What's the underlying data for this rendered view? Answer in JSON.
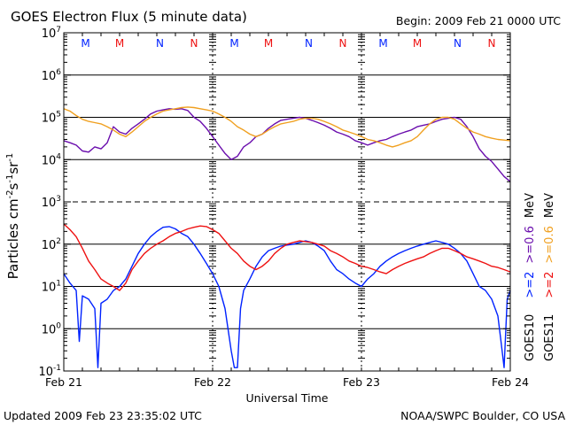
{
  "header": {
    "title": "GOES Electron Flux (5 minute data)",
    "begin": "Begin: 2009 Feb 21 0000 UTC"
  },
  "footer": {
    "updated": "Updated 2009 Feb 23 23:35:02 UTC",
    "source": "NOAA/SWPC Boulder, CO USA"
  },
  "colors": {
    "goes10_e2": "#0022ff",
    "goes10_e06": "#6a0dad",
    "goes11_e2": "#ee1111",
    "goes11_e06": "#f0a020"
  },
  "chart_data": {
    "type": "line",
    "title": "GOES Electron Flux (5 minute data)",
    "xlabel": "Universal Time",
    "ylabel": "Particles cm-2s-1sr-1",
    "yscale": "log",
    "ylim": [
      0.1,
      10000000
    ],
    "xlim": [
      0,
      72
    ],
    "x_unit": "hours since 2009 Feb 21 0000 UTC",
    "x_ticks": [
      {
        "x": 0,
        "label": "Feb 21"
      },
      {
        "x": 24,
        "label": "Feb 22"
      },
      {
        "x": 48,
        "label": "Feb 23"
      },
      {
        "x": 72,
        "label": "Feb 24"
      }
    ],
    "y_ticks": [
      {
        "exp": -1,
        "label": "10-1"
      },
      {
        "exp": 0,
        "label": "100"
      },
      {
        "exp": 1,
        "label": "101"
      },
      {
        "exp": 2,
        "label": "102"
      },
      {
        "exp": 3,
        "label": "103"
      },
      {
        "exp": 4,
        "label": "104"
      },
      {
        "exp": 5,
        "label": "105"
      },
      {
        "exp": 6,
        "label": "106"
      },
      {
        "exp": 7,
        "label": "107"
      }
    ],
    "threshold_line": 1000,
    "noon_midnight_markers": [
      {
        "x": 3.5,
        "label": "M",
        "color": "#0022ff"
      },
      {
        "x": 9.0,
        "label": "M",
        "color": "#ee1111"
      },
      {
        "x": 15.5,
        "label": "N",
        "color": "#0022ff"
      },
      {
        "x": 21.0,
        "label": "N",
        "color": "#ee1111"
      },
      {
        "x": 27.5,
        "label": "M",
        "color": "#0022ff"
      },
      {
        "x": 33.0,
        "label": "M",
        "color": "#ee1111"
      },
      {
        "x": 39.5,
        "label": "N",
        "color": "#0022ff"
      },
      {
        "x": 45.0,
        "label": "N",
        "color": "#ee1111"
      },
      {
        "x": 51.5,
        "label": "M",
        "color": "#0022ff"
      },
      {
        "x": 57.0,
        "label": "M",
        "color": "#ee1111"
      },
      {
        "x": 63.5,
        "label": "N",
        "color": "#0022ff"
      },
      {
        "x": 69.0,
        "label": "N",
        "color": "#ee1111"
      }
    ],
    "legend": [
      {
        "satellite": "GOES10",
        "parts": [
          {
            "text": ">=2",
            "series": "goes10_e2"
          },
          {
            "text": ">=0.6",
            "series": "goes10_e06"
          }
        ],
        "unit": "MeV"
      },
      {
        "satellite": "GOES11",
        "parts": [
          {
            "text": ">=2",
            "series": "goes11_e2"
          },
          {
            "text": ">=0.6",
            "series": "goes11_e06"
          }
        ],
        "unit": "MeV"
      }
    ],
    "series": [
      {
        "name": "GOES10 >=0.6 MeV",
        "key": "goes10_e06",
        "x": [
          0,
          1,
          2,
          3,
          4,
          5,
          6,
          7,
          8,
          9,
          10,
          11,
          12,
          13,
          14,
          15,
          16,
          17,
          18,
          19,
          20,
          21,
          22,
          23,
          24,
          25,
          26,
          27,
          28,
          29,
          30,
          31,
          32,
          33,
          34,
          35,
          36,
          37,
          38,
          39,
          40,
          41,
          42,
          43,
          44,
          45,
          46,
          47,
          48,
          49,
          50,
          51,
          52,
          53,
          54,
          55,
          56,
          57,
          58,
          59,
          60,
          61,
          62,
          63,
          64,
          65,
          66,
          67,
          68,
          69,
          70,
          71,
          72
        ],
        "values": [
          28000,
          25000,
          22000,
          16000,
          15000,
          20000,
          18000,
          25000,
          60000,
          45000,
          40000,
          55000,
          70000,
          90000,
          120000,
          140000,
          150000,
          160000,
          155000,
          160000,
          145000,
          100000,
          80000,
          55000,
          35000,
          22000,
          14000,
          10000,
          12000,
          20000,
          25000,
          35000,
          40000,
          55000,
          70000,
          85000,
          90000,
          95000,
          100000,
          95000,
          85000,
          75000,
          65000,
          55000,
          45000,
          40000,
          35000,
          28000,
          25000,
          22000,
          25000,
          28000,
          30000,
          35000,
          40000,
          45000,
          50000,
          60000,
          65000,
          70000,
          80000,
          90000,
          95000,
          100000,
          90000,
          60000,
          35000,
          18000,
          12000,
          9000,
          6000,
          4000,
          3000
        ]
      },
      {
        "name": "GOES11 >=0.6 MeV",
        "key": "goes11_e06",
        "x": [
          0,
          1,
          2,
          3,
          4,
          5,
          6,
          7,
          8,
          9,
          10,
          11,
          12,
          13,
          14,
          15,
          16,
          17,
          18,
          19,
          20,
          21,
          22,
          23,
          24,
          25,
          26,
          27,
          28,
          29,
          30,
          31,
          32,
          33,
          34,
          35,
          36,
          37,
          38,
          39,
          40,
          41,
          42,
          43,
          44,
          45,
          46,
          47,
          48,
          49,
          50,
          51,
          52,
          53,
          54,
          55,
          56,
          57,
          58,
          59,
          60,
          61,
          62,
          63,
          64,
          65,
          66,
          67,
          68,
          69,
          70,
          71,
          72
        ],
        "values": [
          160000,
          140000,
          110000,
          90000,
          80000,
          75000,
          70000,
          60000,
          50000,
          40000,
          35000,
          45000,
          60000,
          80000,
          100000,
          120000,
          140000,
          150000,
          160000,
          170000,
          175000,
          170000,
          160000,
          150000,
          140000,
          120000,
          100000,
          80000,
          60000,
          50000,
          40000,
          35000,
          40000,
          50000,
          60000,
          70000,
          75000,
          80000,
          90000,
          95000,
          95000,
          90000,
          80000,
          70000,
          60000,
          50000,
          45000,
          40000,
          35000,
          30000,
          28000,
          25000,
          22000,
          20000,
          22000,
          25000,
          28000,
          35000,
          50000,
          70000,
          90000,
          100000,
          100000,
          90000,
          70000,
          55000,
          45000,
          40000,
          35000,
          32000,
          30000,
          29000,
          28000
        ]
      },
      {
        "name": "GOES10 >=2 MeV",
        "key": "goes10_e2",
        "x": [
          0,
          1,
          2,
          2.5,
          3,
          4,
          5,
          5.5,
          6,
          7,
          8,
          9,
          10,
          11,
          12,
          13,
          14,
          15,
          16,
          17,
          18,
          19,
          20,
          21,
          22,
          23,
          24,
          25,
          26,
          27,
          27.5,
          28,
          28.5,
          29,
          30,
          31,
          32,
          33,
          34,
          35,
          36,
          37,
          38,
          39,
          40,
          41,
          42,
          43,
          44,
          45,
          46,
          47,
          48,
          49,
          50,
          51,
          52,
          53,
          54,
          55,
          56,
          57,
          58,
          59,
          60,
          61,
          62,
          63,
          64,
          65,
          66,
          67,
          68,
          69,
          70,
          70.5,
          71,
          71.5,
          72
        ],
        "values": [
          20,
          12,
          8,
          0.5,
          6,
          5,
          3,
          0.12,
          4,
          5,
          8,
          10,
          15,
          30,
          60,
          100,
          150,
          200,
          250,
          260,
          230,
          180,
          150,
          100,
          60,
          35,
          20,
          10,
          3,
          0.3,
          0.12,
          0.12,
          3,
          8,
          15,
          30,
          50,
          70,
          80,
          90,
          95,
          100,
          110,
          120,
          110,
          90,
          70,
          40,
          25,
          20,
          15,
          12,
          10,
          15,
          20,
          30,
          40,
          50,
          60,
          70,
          80,
          90,
          100,
          110,
          120,
          110,
          100,
          80,
          60,
          40,
          20,
          10,
          8,
          5,
          2,
          0.5,
          0.12,
          5,
          8
        ]
      },
      {
        "name": "GOES11 >=2 MeV",
        "key": "goes11_e2",
        "x": [
          0,
          1,
          2,
          3,
          4,
          5,
          6,
          7,
          8,
          9,
          10,
          11,
          12,
          13,
          14,
          15,
          16,
          17,
          18,
          19,
          20,
          21,
          22,
          23,
          24,
          25,
          26,
          27,
          28,
          29,
          30,
          31,
          32,
          33,
          34,
          35,
          36,
          37,
          38,
          39,
          40,
          41,
          42,
          43,
          44,
          45,
          46,
          47,
          48,
          49,
          50,
          51,
          52,
          53,
          54,
          55,
          56,
          57,
          58,
          59,
          60,
          61,
          62,
          63,
          64,
          65,
          66,
          67,
          68,
          69,
          70,
          71,
          72
        ],
        "values": [
          300,
          220,
          150,
          80,
          40,
          25,
          15,
          12,
          10,
          8,
          12,
          25,
          40,
          60,
          80,
          100,
          120,
          150,
          180,
          200,
          230,
          250,
          270,
          260,
          220,
          180,
          120,
          80,
          60,
          40,
          30,
          25,
          30,
          40,
          60,
          80,
          100,
          110,
          120,
          115,
          110,
          100,
          90,
          70,
          60,
          50,
          40,
          35,
          30,
          28,
          25,
          22,
          20,
          25,
          30,
          35,
          40,
          45,
          50,
          60,
          70,
          80,
          80,
          70,
          60,
          50,
          45,
          40,
          35,
          30,
          28,
          25,
          22
        ]
      }
    ]
  }
}
